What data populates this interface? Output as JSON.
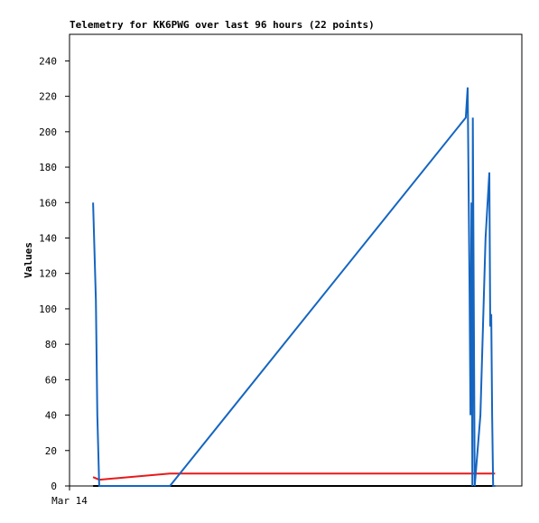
{
  "chart_data": {
    "type": "line",
    "title": "Telemetry for KK6PWG over last 96 hours (22 points)",
    "y_label": "Values",
    "xlim": [
      0,
      96
    ],
    "xticks": [
      {
        "value": 0,
        "label": "Mar 14"
      }
    ],
    "ylim": [
      0,
      255
    ],
    "yticks": [
      0,
      20,
      40,
      60,
      80,
      100,
      120,
      140,
      160,
      180,
      200,
      220,
      240
    ],
    "grid": false,
    "series": [
      {
        "color": "#000000",
        "x": [
          5.0,
          90.3
        ],
        "values": [
          0,
          0
        ]
      },
      {
        "color": "#e8191a",
        "x": [
          5.0,
          6.3,
          21.3,
          84.9,
          90.3
        ],
        "values": [
          5,
          3.5,
          7,
          7,
          7
        ]
      },
      {
        "color": "#1565c0",
        "x": [
          5.0,
          5.6,
          5.9,
          6.3,
          21.3,
          84.1,
          84.5,
          84.9,
          85.1,
          85.3,
          85.5,
          85.6,
          85.8,
          86.0,
          87.2,
          88.3,
          89.1,
          89.3,
          89.5,
          89.7,
          89.9,
          90.3
        ],
        "values": [
          160,
          105,
          40,
          0,
          0,
          208,
          225,
          110,
          40,
          160,
          0,
          208,
          100,
          0,
          40,
          140,
          177,
          90,
          97,
          40,
          0,
          0
        ]
      }
    ]
  }
}
